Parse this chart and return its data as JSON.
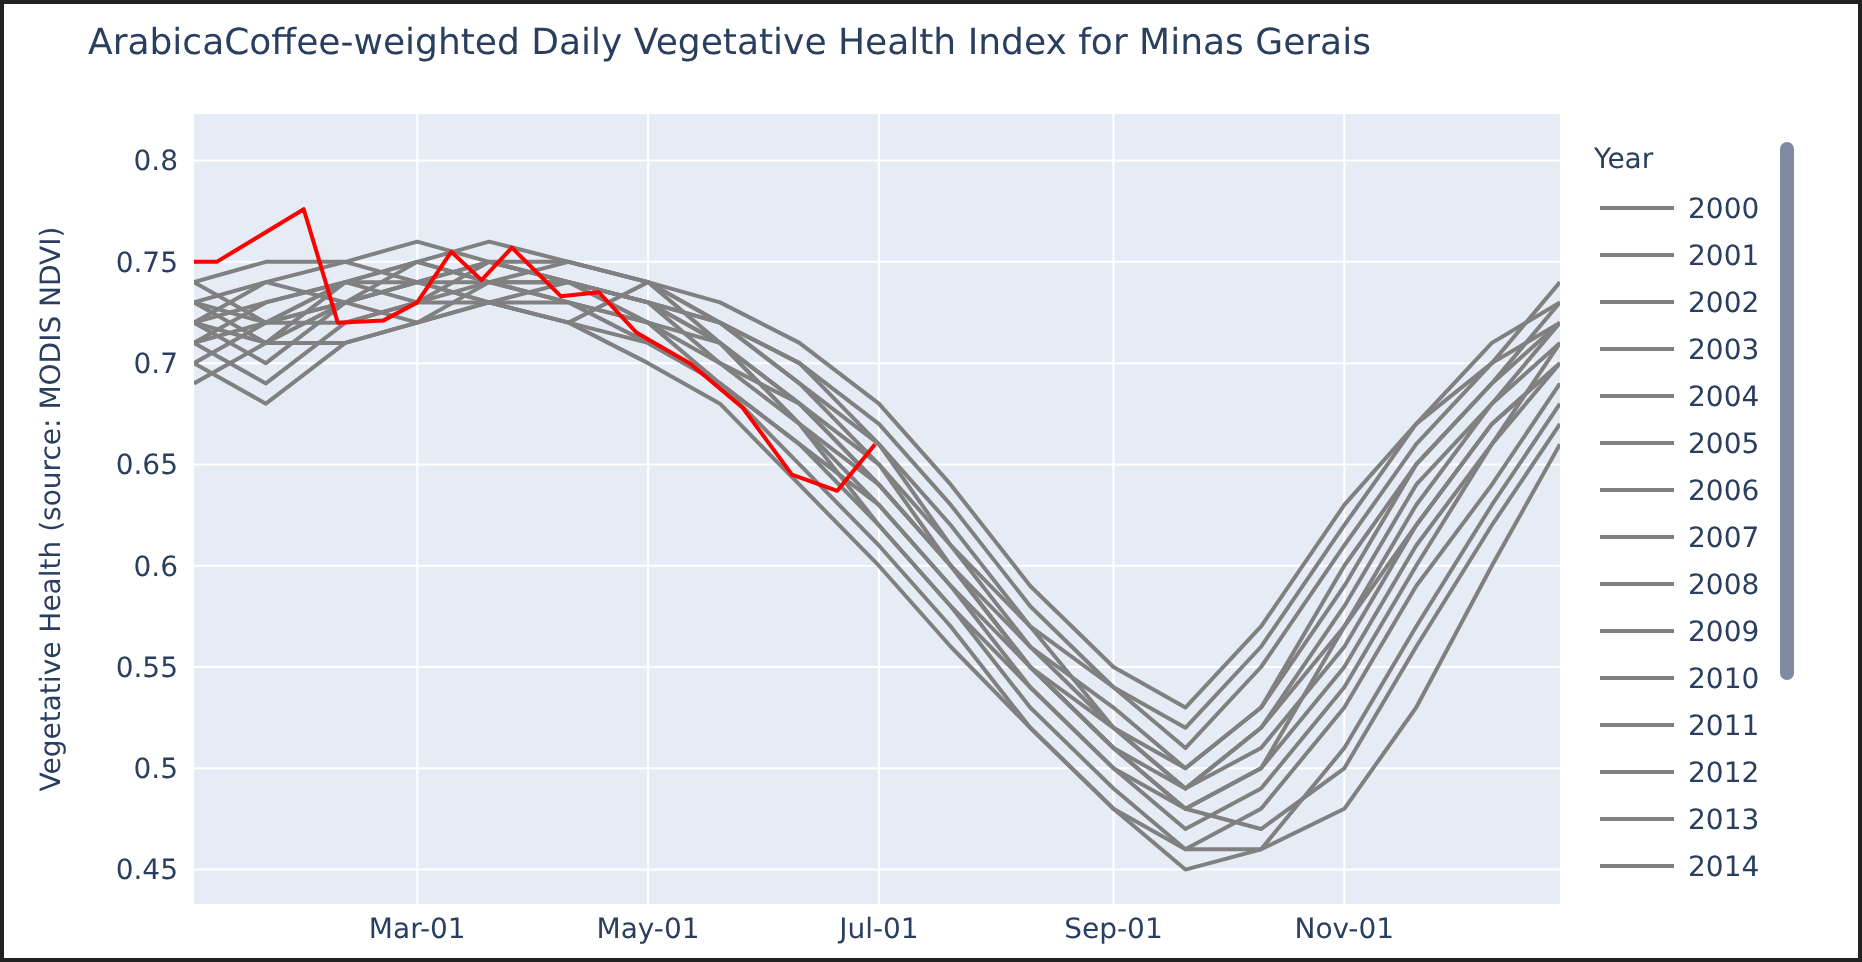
{
  "chart_data": {
    "type": "line",
    "title": "ArabicaCoffee-weighted Daily Vegetative Health Index for Minas Gerais",
    "ylabel": "Vegetative Health (source: MODIS NDVI)",
    "legend_title": "Year",
    "legend": "right",
    "grid": true,
    "x": [
      "--01-01",
      "--01-20",
      "--02-10",
      "--03-01",
      "--03-20",
      "--04-10",
      "--05-01",
      "--05-20",
      "--06-10",
      "--07-01",
      "--07-20",
      "--08-10",
      "--09-01",
      "--09-20",
      "--10-10",
      "--11-01",
      "--11-20",
      "--12-10",
      "--12-28"
    ],
    "xlim": [
      "--01-01",
      "--12-28"
    ],
    "xticks": [
      {
        "value": "--03-01",
        "label": "Mar-01"
      },
      {
        "value": "--05-01",
        "label": "May-01"
      },
      {
        "value": "--07-01",
        "label": "Jul-01"
      },
      {
        "value": "--09-01",
        "label": "Sep-01"
      },
      {
        "value": "--11-01",
        "label": "Nov-01"
      }
    ],
    "ylim": [
      0.433,
      0.823
    ],
    "yticks": [
      0.45,
      0.5,
      0.55,
      0.6,
      0.65,
      0.7,
      0.75,
      0.8
    ],
    "series": [
      {
        "name": "2000",
        "color": "#808080",
        "values": [
          0.72,
          0.7,
          0.73,
          0.74,
          0.75,
          0.74,
          0.73,
          0.72,
          0.69,
          0.66,
          0.62,
          0.57,
          0.52,
          0.49,
          0.52,
          0.58,
          0.64,
          0.68,
          0.72
        ]
      },
      {
        "name": "2001",
        "color": "#808080",
        "values": [
          0.71,
          0.69,
          0.72,
          0.73,
          0.74,
          0.75,
          0.74,
          0.71,
          0.67,
          0.63,
          0.59,
          0.55,
          0.51,
          0.48,
          0.5,
          0.55,
          0.61,
          0.66,
          0.7
        ]
      },
      {
        "name": "2002",
        "color": "#808080",
        "values": [
          0.73,
          0.71,
          0.74,
          0.75,
          0.74,
          0.73,
          0.72,
          0.7,
          0.68,
          0.64,
          0.6,
          0.56,
          0.53,
          0.5,
          0.53,
          0.59,
          0.65,
          0.69,
          0.73
        ]
      },
      {
        "name": "2003",
        "color": "#808080",
        "values": [
          0.7,
          0.72,
          0.73,
          0.72,
          0.74,
          0.74,
          0.73,
          0.71,
          0.67,
          0.62,
          0.58,
          0.54,
          0.5,
          0.47,
          0.49,
          0.54,
          0.6,
          0.66,
          0.71
        ]
      },
      {
        "name": "2004",
        "color": "#808080",
        "values": [
          0.72,
          0.73,
          0.74,
          0.74,
          0.73,
          0.72,
          0.74,
          0.72,
          0.7,
          0.66,
          0.61,
          0.57,
          0.54,
          0.51,
          0.55,
          0.61,
          0.66,
          0.7,
          0.74
        ]
      },
      {
        "name": "2005",
        "color": "#808080",
        "values": [
          0.74,
          0.75,
          0.75,
          0.74,
          0.75,
          0.74,
          0.73,
          0.7,
          0.67,
          0.64,
          0.6,
          0.55,
          0.51,
          0.49,
          0.51,
          0.56,
          0.62,
          0.67,
          0.7
        ]
      },
      {
        "name": "2006",
        "color": "#808080",
        "values": [
          0.71,
          0.72,
          0.72,
          0.73,
          0.73,
          0.74,
          0.72,
          0.69,
          0.66,
          0.62,
          0.58,
          0.53,
          0.49,
          0.46,
          0.48,
          0.53,
          0.59,
          0.64,
          0.69
        ]
      },
      {
        "name": "2007",
        "color": "#808080",
        "values": [
          0.69,
          0.71,
          0.73,
          0.74,
          0.73,
          0.72,
          0.71,
          0.69,
          0.66,
          0.63,
          0.59,
          0.54,
          0.5,
          0.48,
          0.47,
          0.5,
          0.56,
          0.62,
          0.67
        ]
      },
      {
        "name": "2008",
        "color": "#808080",
        "values": [
          0.73,
          0.72,
          0.74,
          0.75,
          0.76,
          0.75,
          0.74,
          0.73,
          0.71,
          0.68,
          0.64,
          0.59,
          0.55,
          0.53,
          0.57,
          0.63,
          0.67,
          0.71,
          0.73
        ]
      },
      {
        "name": "2009",
        "color": "#808080",
        "values": [
          0.72,
          0.74,
          0.75,
          0.76,
          0.75,
          0.75,
          0.74,
          0.72,
          0.7,
          0.67,
          0.63,
          0.58,
          0.54,
          0.52,
          0.56,
          0.62,
          0.67,
          0.7,
          0.72
        ]
      },
      {
        "name": "2010",
        "color": "#808080",
        "values": [
          0.7,
          0.68,
          0.71,
          0.72,
          0.73,
          0.72,
          0.7,
          0.68,
          0.64,
          0.6,
          0.56,
          0.52,
          0.48,
          0.46,
          0.46,
          0.48,
          0.53,
          0.6,
          0.66
        ]
      },
      {
        "name": "2011",
        "color": "#808080",
        "values": [
          0.73,
          0.74,
          0.73,
          0.75,
          0.74,
          0.73,
          0.72,
          0.71,
          0.68,
          0.65,
          0.61,
          0.56,
          0.52,
          0.5,
          0.53,
          0.6,
          0.65,
          0.69,
          0.72
        ]
      },
      {
        "name": "2012",
        "color": "#808080",
        "values": [
          0.74,
          0.72,
          0.73,
          0.74,
          0.74,
          0.74,
          0.73,
          0.72,
          0.69,
          0.65,
          0.6,
          0.55,
          0.51,
          0.48,
          0.5,
          0.57,
          0.63,
          0.68,
          0.71
        ]
      },
      {
        "name": "2013",
        "color": "#808080",
        "values": [
          0.71,
          0.73,
          0.74,
          0.73,
          0.75,
          0.74,
          0.73,
          0.71,
          0.68,
          0.64,
          0.6,
          0.55,
          0.52,
          0.49,
          0.52,
          0.57,
          0.62,
          0.67,
          0.7
        ]
      },
      {
        "name": "2014",
        "color": "#808080",
        "values": [
          0.72,
          0.71,
          0.71,
          0.72,
          0.73,
          0.73,
          0.71,
          0.69,
          0.65,
          0.61,
          0.57,
          0.52,
          0.48,
          0.45,
          0.46,
          0.51,
          0.57,
          0.63,
          0.68
        ]
      },
      {
        "color": "#ff0000",
        "x": [
          "--01-01",
          "--01-07",
          "--01-30",
          "--02-08",
          "--02-20",
          "--03-01",
          "--03-10",
          "--03-18",
          "--03-26",
          "--04-08",
          "--04-18",
          "--04-28",
          "--05-12",
          "--05-26",
          "--06-08",
          "--06-20",
          "--06-30"
        ],
        "values": [
          0.75,
          0.75,
          0.776,
          0.72,
          0.721,
          0.73,
          0.755,
          0.741,
          0.757,
          0.733,
          0.735,
          0.715,
          0.7,
          0.678,
          0.645,
          0.637,
          0.66
        ]
      }
    ]
  }
}
